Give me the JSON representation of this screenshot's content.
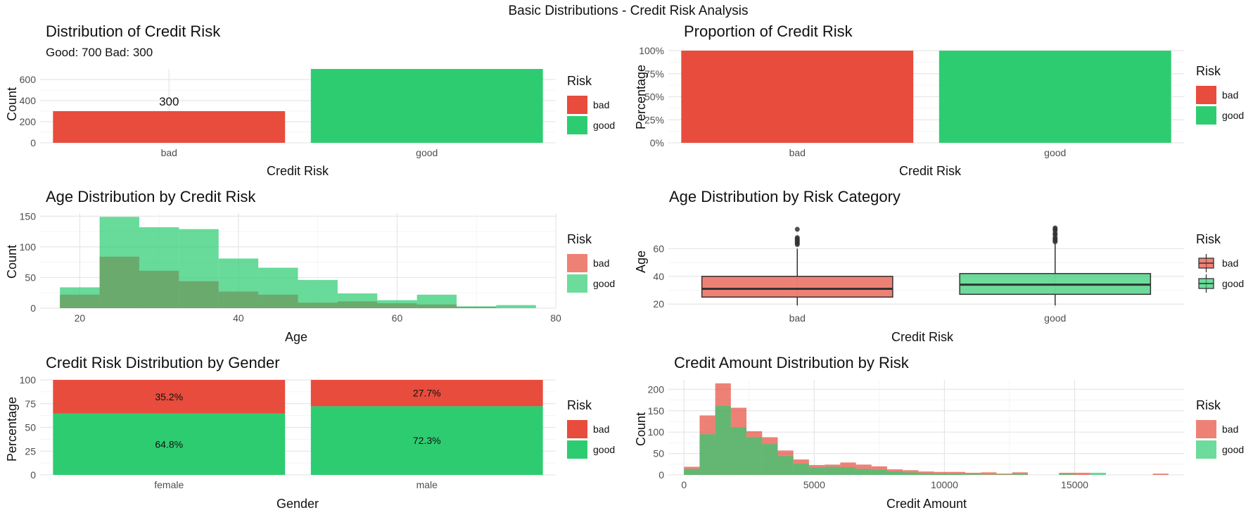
{
  "suptitle": "Basic Distributions - Credit Risk Analysis",
  "colors": {
    "bad": "#E74C3C",
    "good": "#2ECC71",
    "overlap": "#6aa86a"
  },
  "chart_data": [
    {
      "id": "p1",
      "type": "bar",
      "title": "Distribution of Credit Risk",
      "subtitle": "Good: 700 Bad: 300",
      "xlabel": "Credit Risk",
      "ylabel": "Count",
      "categories": [
        "bad",
        "good"
      ],
      "values": [
        300,
        700
      ],
      "data_labels": [
        "300",
        ""
      ],
      "ylim": [
        0,
        700
      ],
      "yticks": [
        0,
        200,
        400,
        600
      ],
      "legend": {
        "title": "Risk",
        "entries": [
          "bad",
          "good"
        ]
      }
    },
    {
      "id": "p2",
      "type": "bar",
      "title": "Proportion of Credit Risk",
      "xlabel": "Credit Risk",
      "ylabel": "Percentage",
      "categories": [
        "bad",
        "good"
      ],
      "values": [
        1,
        1
      ],
      "ylim": [
        0,
        1
      ],
      "yticks": [
        0,
        0.25,
        0.5,
        0.75,
        1
      ],
      "ytick_labels": [
        "0%",
        "25%",
        "50%",
        "75%",
        "100%"
      ],
      "legend": {
        "title": "Risk",
        "entries": [
          "bad",
          "good"
        ]
      }
    },
    {
      "id": "p3",
      "type": "bar",
      "title": "Age Distribution by Credit Risk",
      "xlabel": "Age",
      "ylabel": "Count",
      "bin_edges": [
        17.5,
        22.5,
        27.5,
        32.5,
        37.5,
        42.5,
        47.5,
        52.5,
        57.5,
        62.5,
        67.5,
        72.5,
        77.5
      ],
      "series": [
        {
          "name": "bad",
          "values": [
            22,
            84,
            61,
            44,
            27,
            22,
            9,
            11,
            8,
            6,
            2,
            0
          ]
        },
        {
          "name": "good",
          "values": [
            34,
            149,
            132,
            129,
            81,
            66,
            46,
            24,
            13,
            22,
            3,
            5
          ]
        }
      ],
      "xlim": [
        15,
        80
      ],
      "xticks": [
        20,
        40,
        60,
        80
      ],
      "ylim": [
        0,
        155
      ],
      "yticks": [
        0,
        50,
        100,
        150
      ],
      "legend": {
        "title": "Risk",
        "entries": [
          "bad",
          "good"
        ]
      }
    },
    {
      "id": "p4",
      "type": "box",
      "title": "Age Distribution by Risk Category",
      "xlabel": "Credit Risk",
      "ylabel": "Age",
      "categories": [
        "bad",
        "good"
      ],
      "boxes": [
        {
          "name": "bad",
          "q1": 25,
          "median": 31,
          "q3": 40,
          "whisker_low": 19,
          "whisker_high": 60,
          "outliers": [
            63,
            64,
            65,
            66,
            67,
            68,
            74
          ]
        },
        {
          "name": "good",
          "q1": 27,
          "median": 34,
          "q3": 42,
          "whisker_low": 19,
          "whisker_high": 64,
          "outliers": [
            65,
            66,
            67,
            68,
            70,
            71,
            73,
            74,
            75
          ]
        }
      ],
      "ylim": [
        17,
        76
      ],
      "yticks": [
        20,
        40,
        60
      ],
      "legend": {
        "title": "Risk",
        "entries": [
          "bad",
          "good"
        ]
      }
    },
    {
      "id": "p5",
      "type": "bar",
      "title": "Credit Risk Distribution by Gender",
      "xlabel": "Gender",
      "ylabel": "Percentage",
      "categories": [
        "female",
        "male"
      ],
      "series": [
        {
          "name": "good",
          "values": [
            64.8,
            72.3
          ]
        },
        {
          "name": "bad",
          "values": [
            35.2,
            27.7
          ]
        }
      ],
      "data_labels": {
        "bad": [
          "35.2%",
          "27.7%"
        ],
        "good": [
          "64.8%",
          "72.3%"
        ]
      },
      "ylim": [
        0,
        100
      ],
      "yticks": [
        0,
        25,
        50,
        75,
        100
      ],
      "legend": {
        "title": "Risk",
        "entries": [
          "bad",
          "good"
        ]
      }
    },
    {
      "id": "p6",
      "type": "bar",
      "title": "Credit Amount Distribution by Risk",
      "xlabel": "Credit Amount",
      "ylabel": "Count",
      "bin_edges": [
        0,
        600,
        1200,
        1800,
        2400,
        3000,
        3600,
        4200,
        4800,
        5400,
        6000,
        6600,
        7200,
        7800,
        8400,
        9000,
        9600,
        10200,
        10800,
        11400,
        12000,
        12600,
        13200,
        13800,
        14400,
        15000,
        15600,
        16200,
        16800,
        17400,
        18000,
        18600
      ],
      "series": [
        {
          "name": "bad",
          "values": [
            19,
            139,
            214,
            157,
            102,
            88,
            57,
            36,
            23,
            24,
            29,
            24,
            20,
            13,
            11,
            8,
            7,
            7,
            5,
            6,
            3,
            6,
            0,
            0,
            5,
            5,
            0,
            0,
            0,
            0,
            3
          ]
        },
        {
          "name": "good",
          "values": [
            14,
            95,
            161,
            111,
            88,
            72,
            44,
            26,
            17,
            19,
            18,
            14,
            12,
            8,
            6,
            4,
            3,
            3,
            2,
            1,
            1,
            2,
            0,
            0,
            2,
            0,
            5,
            0,
            0,
            0,
            0
          ]
        }
      ],
      "xlim": [
        -600,
        19200
      ],
      "xticks": [
        0,
        5000,
        10000,
        15000
      ],
      "ylim": [
        0,
        222
      ],
      "yticks": [
        0,
        50,
        100,
        150,
        200
      ],
      "legend": {
        "title": "Risk",
        "entries": [
          "bad",
          "good"
        ]
      }
    }
  ]
}
